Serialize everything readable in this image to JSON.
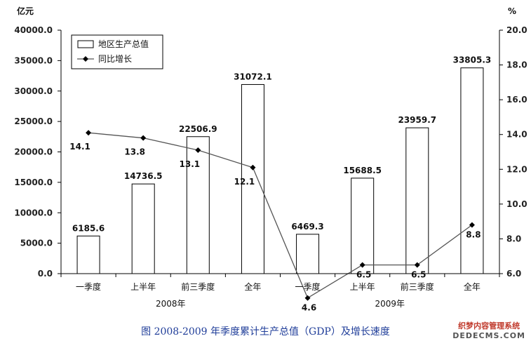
{
  "chart_data": {
    "type": "bar",
    "title": "",
    "left_unit": "亿元",
    "right_unit": "%",
    "categories": [
      "一季度",
      "上半年",
      "前三季度",
      "全年",
      "一季度",
      "上半年",
      "前三季度",
      "全年"
    ],
    "year_groups": [
      {
        "label": "2008年",
        "start": 0,
        "end": 3
      },
      {
        "label": "2009年",
        "start": 4,
        "end": 7
      }
    ],
    "left_axis": {
      "min": 0,
      "max": 40000,
      "step": 5000,
      "tick_labels": [
        "0.0",
        "5000.0",
        "10000.0",
        "15000.0",
        "20000.0",
        "25000.0",
        "30000.0",
        "35000.0",
        "40000.0"
      ]
    },
    "right_axis": {
      "min": 6,
      "max": 20,
      "step": 2,
      "tick_labels": [
        "6.0",
        "8.0",
        "10.0",
        "12.0",
        "14.0",
        "16.0",
        "18.0",
        "20.0"
      ]
    },
    "series": [
      {
        "name": "地区生产总值",
        "kind": "bar",
        "axis": "left",
        "values": [
          6185.6,
          14736.5,
          22506.9,
          31072.1,
          6469.3,
          15688.5,
          23959.7,
          33805.3
        ],
        "labels": [
          "6185.6",
          "14736.5",
          "22506.9",
          "31072.1",
          "6469.3",
          "15688.5",
          "23959.7",
          "33805.3"
        ]
      },
      {
        "name": "同比增长",
        "kind": "line",
        "axis": "right",
        "values": [
          14.1,
          13.8,
          13.1,
          12.1,
          4.6,
          6.5,
          6.5,
          8.8
        ],
        "labels": [
          "14.1",
          "13.8",
          "13.1",
          "12.1",
          "4.6",
          "6.5",
          "6.5",
          "8.8"
        ]
      }
    ],
    "legend_position": "top-left",
    "grid": false
  },
  "caption": "图 2008-2009 年季度累计生产总值（GDP）及增长速度",
  "watermark": {
    "line1": "织梦内容管理系统",
    "line2": "DEDECMS.COM"
  }
}
